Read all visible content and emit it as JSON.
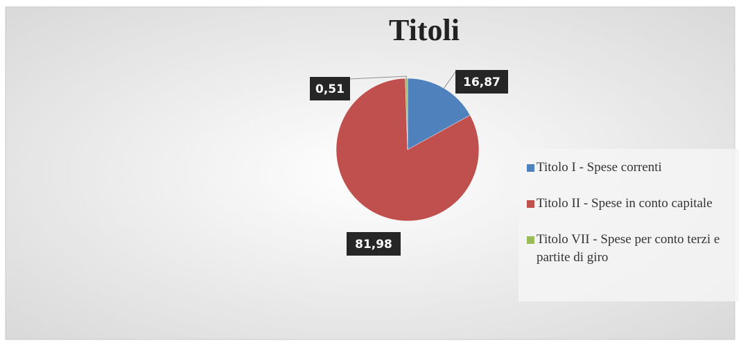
{
  "chart_data": {
    "type": "pie",
    "title": "Titoli",
    "categories": [
      "Titolo I - Spese correnti",
      "Titolo II - Spese in conto capitale",
      "Titolo VII - Spese per conto terzi e partite di giro"
    ],
    "values": [
      16.87,
      81.98,
      0.51
    ],
    "value_labels": [
      "16,87",
      "81,98",
      "0,51"
    ],
    "colors": [
      "#4f81bd",
      "#c0504d",
      "#9bbb59"
    ],
    "legend": "right"
  }
}
